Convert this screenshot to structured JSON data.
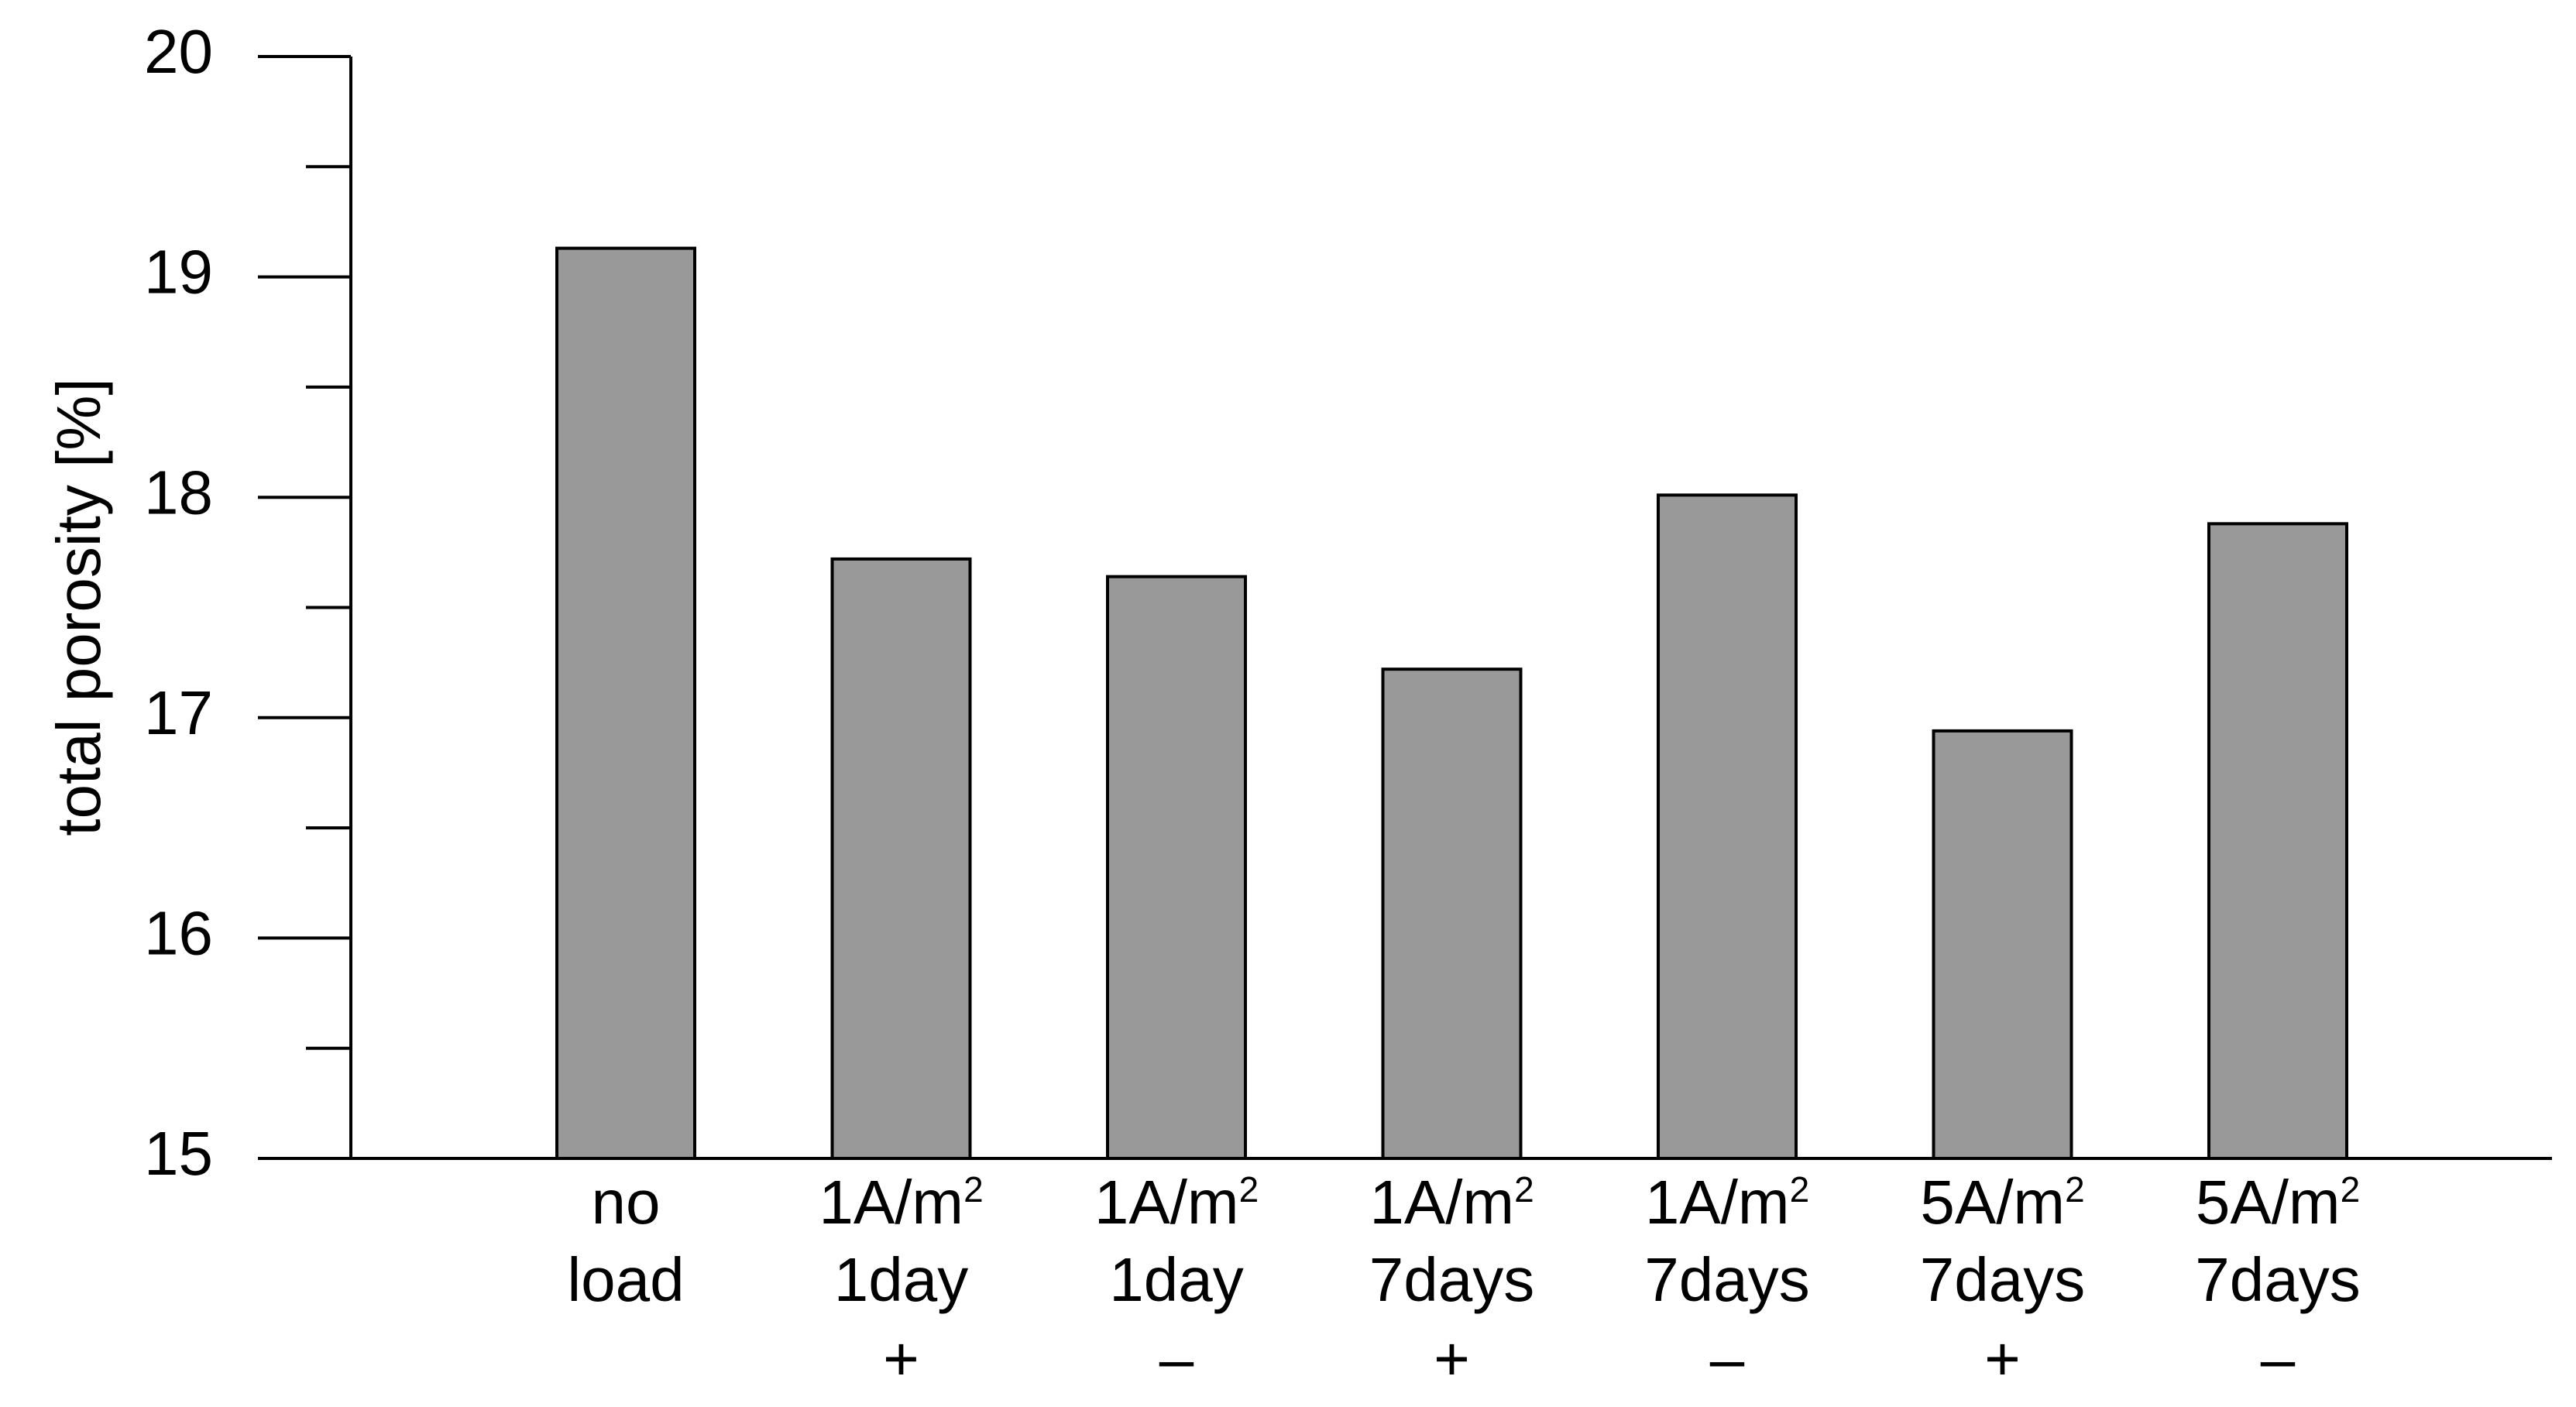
{
  "chart_data": {
    "type": "bar",
    "title": "",
    "xlabel": "",
    "ylabel": "total porosity [%]",
    "ylim": [
      15,
      20
    ],
    "yticks": [
      {
        "value": 15,
        "label": "15"
      },
      {
        "value": 16,
        "label": "16"
      },
      {
        "value": 17,
        "label": "17"
      },
      {
        "value": 18,
        "label": "18"
      },
      {
        "value": 19,
        "label": "19"
      },
      {
        "value": 20,
        "label": "20"
      }
    ],
    "minor_ticks": [
      15.5,
      16.5,
      17.5,
      18.5,
      19.5
    ],
    "categories": [
      {
        "lines": [
          "no",
          "load"
        ],
        "sign": "",
        "superscript": ""
      },
      {
        "lines": [
          "1A/m",
          "1day"
        ],
        "sign": "+",
        "superscript": "2"
      },
      {
        "lines": [
          "1A/m",
          "1day"
        ],
        "sign": "–",
        "superscript": "2"
      },
      {
        "lines": [
          "1A/m",
          "7days"
        ],
        "sign": "+",
        "superscript": "2"
      },
      {
        "lines": [
          "1A/m",
          "7days"
        ],
        "sign": "–",
        "superscript": "2"
      },
      {
        "lines": [
          "5A/m",
          "7days"
        ],
        "sign": "+",
        "superscript": "2"
      },
      {
        "lines": [
          "5A/m",
          "7days"
        ],
        "sign": "–",
        "superscript": "2"
      }
    ],
    "values": [
      19.13,
      17.72,
      17.64,
      17.22,
      18.01,
      16.94,
      17.88
    ],
    "bar_color": "#999999",
    "grid": false,
    "legend": "none"
  }
}
